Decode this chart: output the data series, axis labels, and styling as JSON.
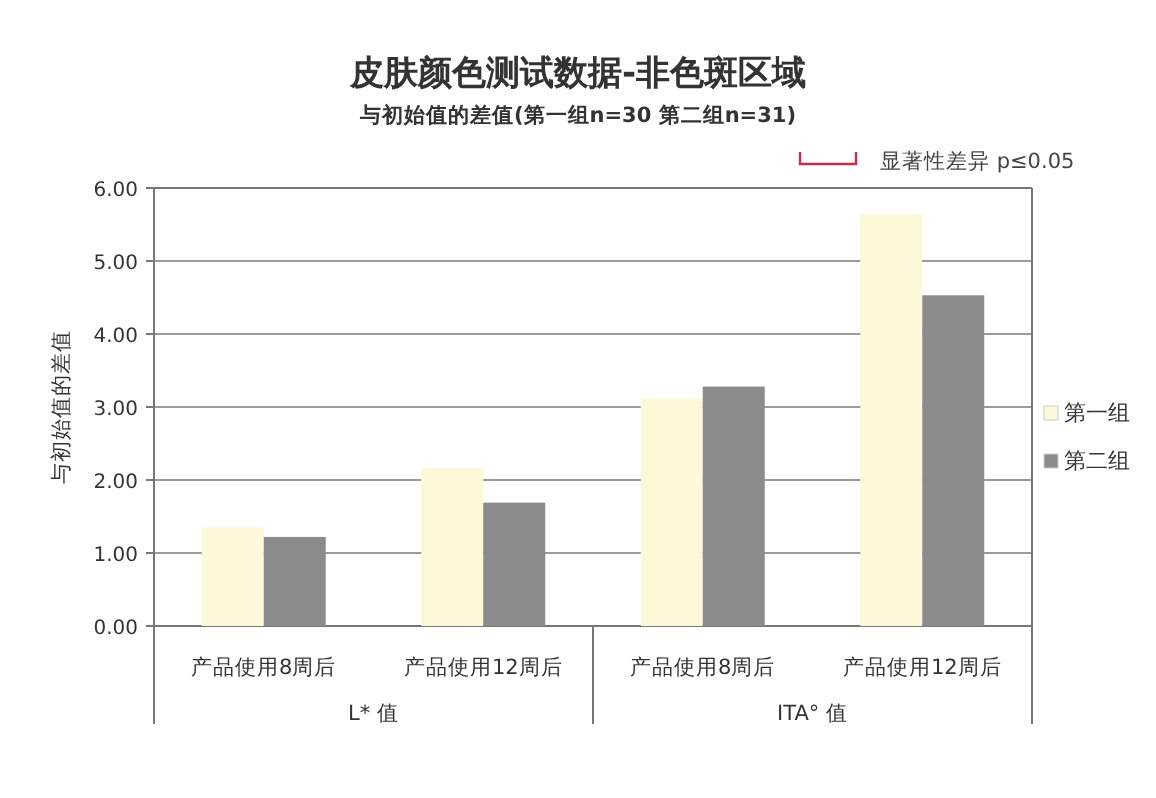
{
  "chart_data": {
    "type": "bar",
    "title": "皮肤颜色测试数据-非色斑区域",
    "subtitle": "与初始值的差值(第一组n=30 第二组n=31)",
    "ylabel": "与初始值的差值",
    "categories": [
      "产品使用8周后",
      "产品使用12周后",
      "产品使用8周后",
      "产品使用12周后"
    ],
    "series": [
      {
        "name": "第一组",
        "color": "#fdf8d8",
        "values": [
          1.35,
          2.16,
          3.12,
          5.64
        ]
      },
      {
        "name": "第二组",
        "color": "#8a8c8c",
        "values": [
          1.22,
          1.69,
          3.28,
          4.53
        ]
      }
    ],
    "ylim": [
      0,
      6
    ],
    "yticks": [
      {
        "value": 0,
        "label": "0.00"
      },
      {
        "value": 1,
        "label": "1.00"
      },
      {
        "value": 2,
        "label": "2.00"
      },
      {
        "value": 3,
        "label": "3.00"
      },
      {
        "value": 4,
        "label": "4.00"
      },
      {
        "value": 5,
        "label": "5.00"
      },
      {
        "value": 6,
        "label": "6.00"
      }
    ],
    "grid": "y",
    "legend": "right",
    "annotations": [
      "L* 值",
      "ITA°  值",
      "显著性差异 p≤0.05"
    ]
  }
}
